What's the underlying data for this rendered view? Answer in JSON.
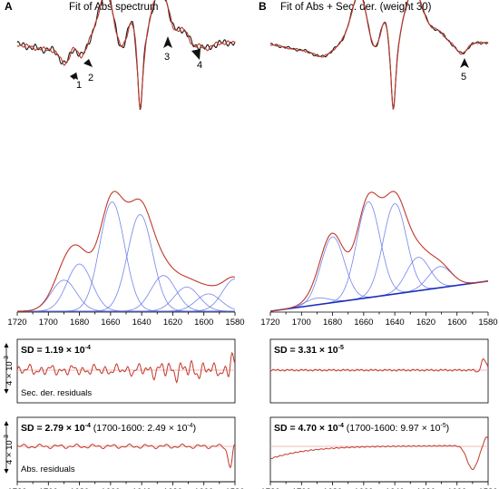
{
  "panels": [
    {
      "letter": "A",
      "title": "Fit of Abs spectrum",
      "markers": [
        "1",
        "2",
        "3",
        "4"
      ],
      "sec_sd": {
        "bold": "SD = 1.19 × 10",
        "exp": "-4",
        "extra": ""
      },
      "sec_label": "Sec. der. residuals",
      "abs_sd": {
        "bold": "SD = 2.79 × 10",
        "exp": "-4",
        "extra": " (1700-1600: 2.49 × 10",
        "extra_exp": "-4",
        "extra_end": ")"
      },
      "abs_label": "Abs. residuals"
    },
    {
      "letter": "B",
      "title": "Fit of Abs + Sec. der. (weight 30)",
      "markers": [
        "5"
      ],
      "sec_sd": {
        "bold": "SD = 3.31 × 10",
        "exp": "-5",
        "extra": ""
      },
      "sec_label": "",
      "abs_sd": {
        "bold": "SD = 4.70 × 10",
        "exp": "-4",
        "extra": " (1700-1600: 9.97 × 10",
        "extra_exp": "-5",
        "extra_end": ")"
      },
      "abs_label": ""
    }
  ],
  "scale_bar": {
    "label": "4 × 10",
    "exp": "-3"
  },
  "x_ticks": [
    "1720",
    "1700",
    "1680",
    "1660",
    "1640",
    "1620",
    "1600",
    "1580"
  ],
  "chart_data": {
    "type": "line",
    "x_axis": {
      "range": [
        1720,
        1580
      ],
      "reversed": true,
      "ticks": [
        1720,
        1700,
        1680,
        1660,
        1640,
        1620,
        1600,
        1580
      ]
    },
    "colors": {
      "data": "#1a1a1a",
      "fit": "#c0392b",
      "components": "#5b6ee8",
      "baseline": "#1f2fb8",
      "zero": "#f2a0a0"
    },
    "second_derivative": {
      "A": {
        "key_points": [
          [
            1720,
            0.1
          ],
          [
            1695,
            -0.2
          ],
          [
            1688,
            -0.45
          ],
          [
            1680,
            -0.25
          ],
          [
            1675,
            -0.3
          ],
          [
            1662,
            0.35
          ],
          [
            1652,
            -0.25
          ],
          [
            1643,
            0.3
          ],
          [
            1641,
            -1.0
          ],
          [
            1636,
            0.15
          ],
          [
            1628,
            0.6
          ],
          [
            1620,
            0.35
          ],
          [
            1612,
            0.05
          ],
          [
            1605,
            -0.05
          ],
          [
            1590,
            0.05
          ],
          [
            1580,
            0.0
          ]
        ]
      },
      "B": {
        "key_points": [
          [
            1720,
            0.1
          ],
          [
            1690,
            -0.15
          ],
          [
            1675,
            -0.2
          ],
          [
            1662,
            0.3
          ],
          [
            1652,
            -0.3
          ],
          [
            1643,
            0.3
          ],
          [
            1641,
            -1.0
          ],
          [
            1636,
            0.15
          ],
          [
            1628,
            0.62
          ],
          [
            1620,
            0.3
          ],
          [
            1605,
            -0.05
          ],
          [
            1596,
            -0.1
          ],
          [
            1580,
            0.0
          ]
        ]
      },
      "markers": {
        "A": [
          1688,
          1682,
          1621,
          1608
        ],
        "B": [
          1597
        ]
      }
    },
    "absorbance": {
      "components": {
        "A": [
          {
            "center": 1690,
            "amp": 0.27
          },
          {
            "center": 1680,
            "amp": 0.41
          },
          {
            "center": 1659,
            "amp": 0.95
          },
          {
            "center": 1641,
            "amp": 0.84
          },
          {
            "center": 1626,
            "amp": 0.31
          },
          {
            "center": 1611,
            "amp": 0.21
          },
          {
            "center": 1597,
            "amp": 0.15
          },
          {
            "center": 1580,
            "amp": 0.28
          }
        ],
        "B": [
          {
            "center": 1690,
            "amp": 0.06
          },
          {
            "center": 1680,
            "amp": 0.59
          },
          {
            "center": 1657,
            "amp": 0.86
          },
          {
            "center": 1640,
            "amp": 0.81
          },
          {
            "center": 1625,
            "amp": 0.3
          },
          {
            "center": 1611,
            "amp": 0.19
          }
        ]
      },
      "total_peak": {
        "x": 1642,
        "value": 1.2
      }
    },
    "residuals": {
      "sec_der": {
        "A": "oscillating around zero, spike near 1581",
        "B": "near zero, spike near 1583"
      },
      "abs": {
        "A": "small oscillation, dip near 1583",
        "B": "curved baseline, dip near 1590"
      }
    }
  }
}
